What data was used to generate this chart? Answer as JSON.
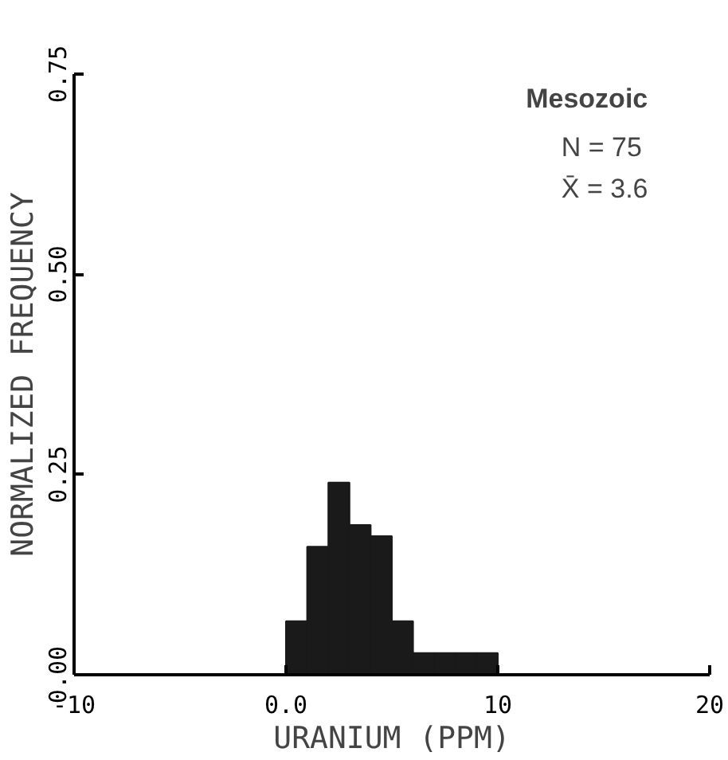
{
  "chart_data": {
    "type": "histogram",
    "xlabel": "URANIUM (PPM)",
    "ylabel": "NORMALIZED FREQUENCY",
    "annotations": [
      "Mesozoic",
      "N = 75",
      "X̄ = 3.6"
    ],
    "bins": [
      0,
      1,
      2,
      3,
      4,
      5,
      6,
      7,
      8,
      9,
      10
    ],
    "values": [
      0.067,
      0.16,
      0.24,
      0.187,
      0.173,
      0.067,
      0.027,
      0.027,
      0.027,
      0.027
    ],
    "color": "#1a1a1a",
    "xlim": [
      -10,
      20
    ],
    "xticks": [
      -10,
      {
        "value": 0,
        "label": "0.0"
      },
      10,
      20
    ],
    "ylim": [
      0,
      0.75
    ],
    "yticks": [
      {
        "value": 0,
        "label": "0.00"
      },
      0.25,
      {
        "value": 0.5,
        "label": "0.50"
      },
      0.75
    ],
    "grid": false
  }
}
